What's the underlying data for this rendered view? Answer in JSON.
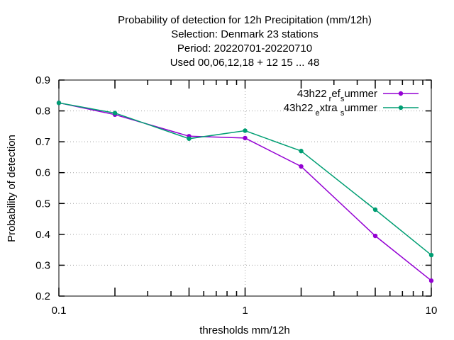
{
  "chart_data": {
    "type": "line",
    "title_lines": [
      "Probability of detection  for 12h Precipitation (mm/12h)",
      "Selection: Denmark     23 stations",
      "Period: 20220701-20220710",
      "Used  00,06,12,18  + 12 15 ... 48"
    ],
    "xlabel": "thresholds mm/12h",
    "ylabel": "Probability of detection",
    "x_scale": "log",
    "xlim": [
      0.1,
      10
    ],
    "ylim": [
      0.2,
      0.9
    ],
    "x_tick_labels": [
      "0.1",
      "1",
      "10"
    ],
    "y_tick_labels": [
      "0.2",
      "0.3",
      "0.4",
      "0.5",
      "0.6",
      "0.7",
      "0.8",
      "0.9"
    ],
    "grid": true,
    "legend_position": "top-right",
    "x": [
      0.1,
      0.2,
      0.5,
      1,
      2,
      5,
      10
    ],
    "series": [
      {
        "name": "43h22 ref summer",
        "legend_main": "43h22",
        "legend_parts": [
          {
            "t": " r",
            "sub": true
          },
          {
            "t": "ef",
            "sub": false
          },
          {
            "t": "s",
            "sub": true
          },
          {
            "t": "ummer",
            "sub": false
          }
        ],
        "color": "#9400d3",
        "values": [
          0.826,
          0.788,
          0.718,
          0.712,
          0.62,
          0.395,
          0.25
        ]
      },
      {
        "name": "43h22 extra summer",
        "legend_main": "43h22",
        "legend_parts": [
          {
            "t": " e",
            "sub": true
          },
          {
            "t": "xtra ",
            "sub": false
          },
          {
            "t": "s",
            "sub": true
          },
          {
            "t": "ummer",
            "sub": false
          }
        ],
        "color": "#009e73",
        "values": [
          0.826,
          0.793,
          0.71,
          0.736,
          0.67,
          0.48,
          0.333
        ]
      }
    ]
  }
}
